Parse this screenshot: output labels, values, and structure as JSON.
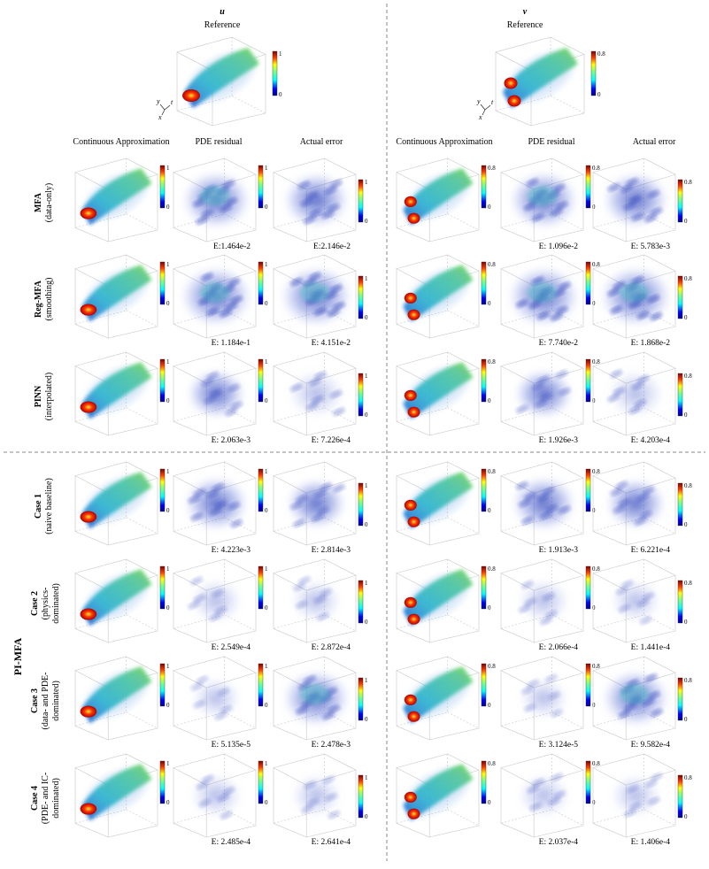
{
  "reference": {
    "u": {
      "symbol": "u",
      "title": "Reference",
      "cb_max": "1",
      "cb_min": "0"
    },
    "v": {
      "symbol": "v",
      "title": "Reference",
      "cb_max": "0.8",
      "cb_min": "0"
    }
  },
  "axis_labels": {
    "y": "y",
    "t": "t",
    "x": "x"
  },
  "column_headers": [
    "Continuous Approximation",
    "PDE residual",
    "Actual error"
  ],
  "group_label": "PI-MFA",
  "rows": [
    {
      "label_bold": "MFA",
      "label_sub": [
        "(data-only)"
      ],
      "u_err": [
        "E:1.464e-2",
        "E:2.146e-2"
      ],
      "v_err": [
        "E: 1.096e-2",
        "E: 5.783e-3"
      ]
    },
    {
      "label_bold": "Reg-MFA",
      "label_sub": [
        "(smoothing)"
      ],
      "u_err": [
        "E: 1.184e-1",
        "E: 4.151e-2"
      ],
      "v_err": [
        "E: 7.740e-2",
        "E: 1.868e-2"
      ]
    },
    {
      "label_bold": "PINN",
      "label_sub": [
        "(interpolated)"
      ],
      "u_err": [
        "E: 2.063e-3",
        "E: 7.226e-4"
      ],
      "v_err": [
        "E: 1.926e-3",
        "E: 4.203e-4"
      ]
    },
    {
      "label_bold": "Case 1",
      "label_sub": [
        "(naive baseline)"
      ],
      "u_err": [
        "E: 4.223e-3",
        "E: 2.814e-3"
      ],
      "v_err": [
        "E: 1.913e-3",
        "E: 6.221e-4"
      ]
    },
    {
      "label_bold": "Case 2",
      "label_sub": [
        "(physics-",
        "dominated)"
      ],
      "u_err": [
        "E: 2.549e-4",
        "E: 2.872e-4"
      ],
      "v_err": [
        "E: 2.066e-4",
        "E: 1.441e-4"
      ]
    },
    {
      "label_bold": "Case 3",
      "label_sub": [
        "(data- and PDE-",
        "dominated)"
      ],
      "u_err": [
        "E: 5.135e-5",
        "E: 2.478e-3"
      ],
      "v_err": [
        "E: 3.124e-5",
        "E: 9.582e-4"
      ]
    },
    {
      "label_bold": "Case 4",
      "label_sub": [
        "(PDE- and IC-",
        "dominated)"
      ],
      "u_err": [
        "E: 2.485e-4",
        "E: 2.641e-4"
      ],
      "v_err": [
        "E: 2.037e-4",
        "E: 1.406e-4"
      ]
    }
  ],
  "colorbars": {
    "u": {
      "max": "1",
      "min": "0"
    },
    "v": {
      "max": "0.8",
      "min": "0"
    }
  }
}
